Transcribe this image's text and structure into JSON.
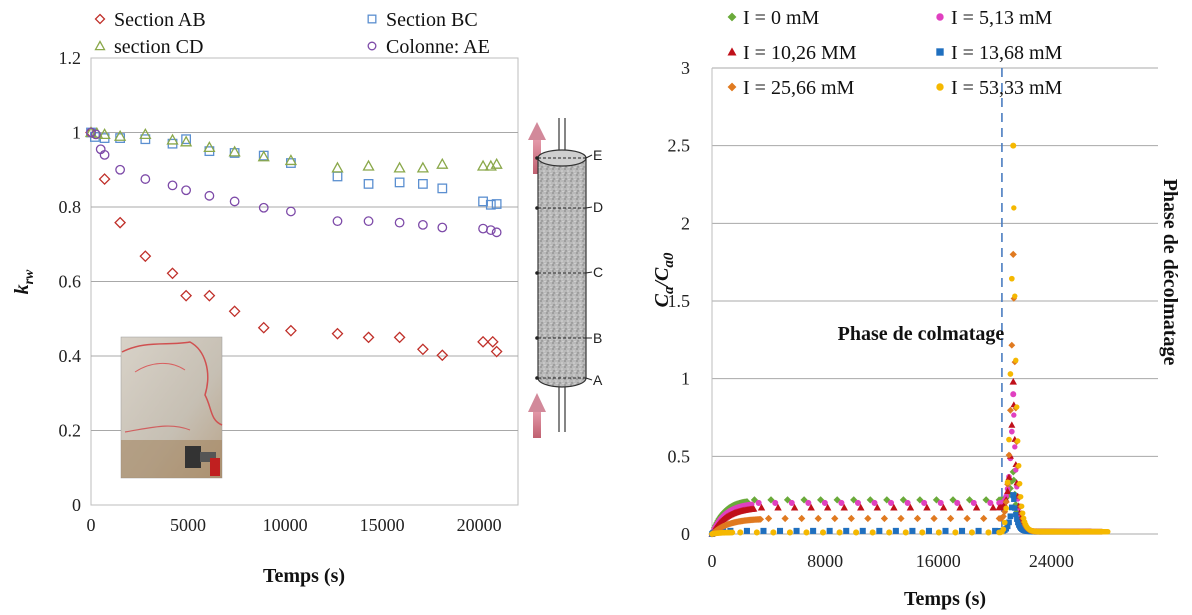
{
  "chart_data": [
    {
      "type": "scatter",
      "xlabel": "Temps (s)",
      "ylabel": "krw",
      "ylabel_main": "k",
      "ylabel_sub": "rw",
      "xlim": [
        0,
        22000
      ],
      "ylim": [
        0,
        1.2
      ],
      "xticks": [
        0,
        5000,
        10000,
        15000,
        20000
      ],
      "yticks": [
        0,
        0.2,
        0.4,
        0.6,
        0.8,
        1,
        1.2
      ],
      "xtick_labels": [
        "0",
        "5000",
        "10000",
        "15000",
        "20000"
      ],
      "ytick_labels": [
        "0",
        "0.2",
        "0.4",
        "0.6",
        "0.8",
        "1",
        "1.2"
      ],
      "grid": "horizontal",
      "legend_position": "top",
      "series": [
        {
          "name": "Section AB",
          "marker": "diamond",
          "color": "#c0302a",
          "x": [
            0,
            700,
            1500,
            2800,
            4200,
            4900,
            6100,
            7400,
            8900,
            10300,
            12700,
            14300,
            15900,
            17100,
            18100,
            20200,
            20700,
            20900
          ],
          "y": [
            1.0,
            0.875,
            0.758,
            0.668,
            0.622,
            0.562,
            0.562,
            0.52,
            0.476,
            0.468,
            0.46,
            0.45,
            0.45,
            0.418,
            0.402,
            0.438,
            0.438,
            0.412
          ]
        },
        {
          "name": "Section BC",
          "marker": "square",
          "color": "#5b8fd0",
          "x": [
            0,
            200,
            700,
            1500,
            2800,
            4200,
            4900,
            6100,
            7400,
            8900,
            10300,
            12700,
            14300,
            15900,
            17100,
            18100,
            20200,
            20600,
            20900
          ],
          "y": [
            1.0,
            0.988,
            0.985,
            0.985,
            0.982,
            0.97,
            0.982,
            0.95,
            0.945,
            0.938,
            0.918,
            0.882,
            0.862,
            0.866,
            0.862,
            0.85,
            0.815,
            0.806,
            0.808
          ]
        },
        {
          "name": "section CD",
          "marker": "triangle",
          "color": "#8aa84a",
          "x": [
            0,
            300,
            700,
            1500,
            2800,
            4200,
            4900,
            6100,
            7400,
            8900,
            10300,
            12700,
            14300,
            15900,
            17100,
            18100,
            20200,
            20600,
            20900
          ],
          "y": [
            1.0,
            0.998,
            0.995,
            0.99,
            0.995,
            0.98,
            0.975,
            0.96,
            0.948,
            0.935,
            0.925,
            0.905,
            0.91,
            0.905,
            0.905,
            0.915,
            0.91,
            0.91,
            0.915
          ]
        },
        {
          "name": "Colonne: AE",
          "marker": "circle",
          "color": "#7d4aa8",
          "x": [
            0,
            250,
            500,
            700,
            1500,
            2800,
            4200,
            4900,
            6100,
            7400,
            8900,
            10300,
            12700,
            14300,
            15900,
            17100,
            18100,
            20200,
            20600,
            20900
          ],
          "y": [
            1.0,
            0.995,
            0.955,
            0.94,
            0.9,
            0.875,
            0.858,
            0.845,
            0.83,
            0.815,
            0.798,
            0.788,
            0.762,
            0.762,
            0.758,
            0.752,
            0.745,
            0.742,
            0.738,
            0.732
          ]
        }
      ]
    },
    {
      "type": "scatter",
      "xlabel": "Temps (s)",
      "ylabel": "Ca/Ca0",
      "ylabel_c": "C",
      "ylabel_a": "a",
      "ylabel_slash": "/",
      "ylabel_c2": "C",
      "ylabel_a0": "a0",
      "xlim": [
        0,
        28000
      ],
      "ylim": [
        0,
        3
      ],
      "xticks": [
        0,
        8000,
        16000,
        24000
      ],
      "yticks": [
        0,
        0.5,
        1,
        1.5,
        2,
        2.5,
        3
      ],
      "xtick_labels": [
        "0",
        "8000",
        "16000",
        "24000"
      ],
      "ytick_labels": [
        "0",
        "0.5",
        "1",
        "1.5",
        "2",
        "2.5",
        "3"
      ],
      "grid": "horizontal",
      "legend_position": "top",
      "vline_x": 20500,
      "annotations": [
        "Phase de colmatage",
        "Phase de décolmatage"
      ],
      "series": [
        {
          "name": "I = 0 mM",
          "marker": "diamond",
          "color": "#6aaa3a",
          "plateau": 0.22,
          "ramp_to": 2500,
          "peak": 0.4
        },
        {
          "name": "I = 5,13 mM",
          "marker": "circle",
          "color": "#e040c0",
          "plateau": 0.2,
          "ramp_to": 2800,
          "peak": 0.9
        },
        {
          "name": "I = 10,26 MM",
          "marker": "triangle",
          "color": "#c0101a",
          "plateau": 0.17,
          "ramp_to": 3000,
          "peak": 0.98
        },
        {
          "name": "I = 13,68 mM",
          "marker": "square",
          "color": "#1f6fbf",
          "plateau": 0.02,
          "ramp_to": 800,
          "peak": 0.25
        },
        {
          "name": "I = 25,66 mM",
          "marker": "diamond",
          "color": "#e07a20",
          "plateau": 0.1,
          "ramp_to": 3500,
          "peak": 1.8
        },
        {
          "name": "I = 53,33 mM",
          "marker": "circle",
          "color": "#f5b800",
          "plateau": 0.01,
          "ramp_to": 1500,
          "peak": 2.5
        }
      ]
    }
  ],
  "diagram": {
    "letters": [
      "E",
      "D",
      "C",
      "B",
      "A"
    ]
  }
}
